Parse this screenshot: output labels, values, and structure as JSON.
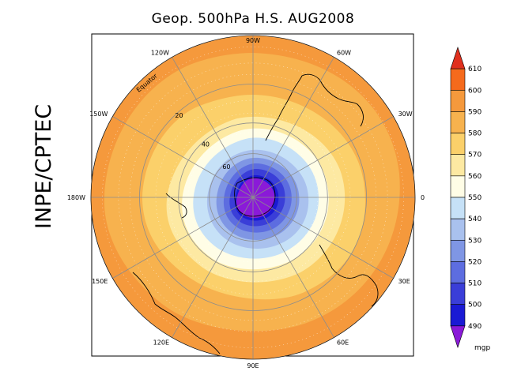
{
  "title": "Geop. 500hPa H.S. AUG2008",
  "side_label": "INPE/CPTEC",
  "map": {
    "projection": "polar stereographic, south pole centred",
    "longitude_labels": [
      "90W",
      "60W",
      "30W",
      "0",
      "30E",
      "60E",
      "90E",
      "120E",
      "150E",
      "180W",
      "150W",
      "120W"
    ],
    "latitude_labels": [
      "Equator",
      "20",
      "40",
      "60"
    ],
    "colors": {
      "frame": "#000000",
      "grid": "#808080",
      "coast": "#000000"
    }
  },
  "colorbar": {
    "unit": "mgp",
    "levels": [
      "610",
      "600",
      "590",
      "580",
      "570",
      "560",
      "550",
      "540",
      "530",
      "520",
      "510",
      "500",
      "490"
    ],
    "colors": [
      "#e0301e",
      "#f56a1c",
      "#f5993c",
      "#f7b24e",
      "#fbd06a",
      "#fde9a2",
      "#fffde6",
      "#c6e1f7",
      "#a9c1ee",
      "#7f96e4",
      "#5d6de0",
      "#3a3ed8",
      "#1a1ad4",
      "#8a1ad8"
    ]
  }
}
